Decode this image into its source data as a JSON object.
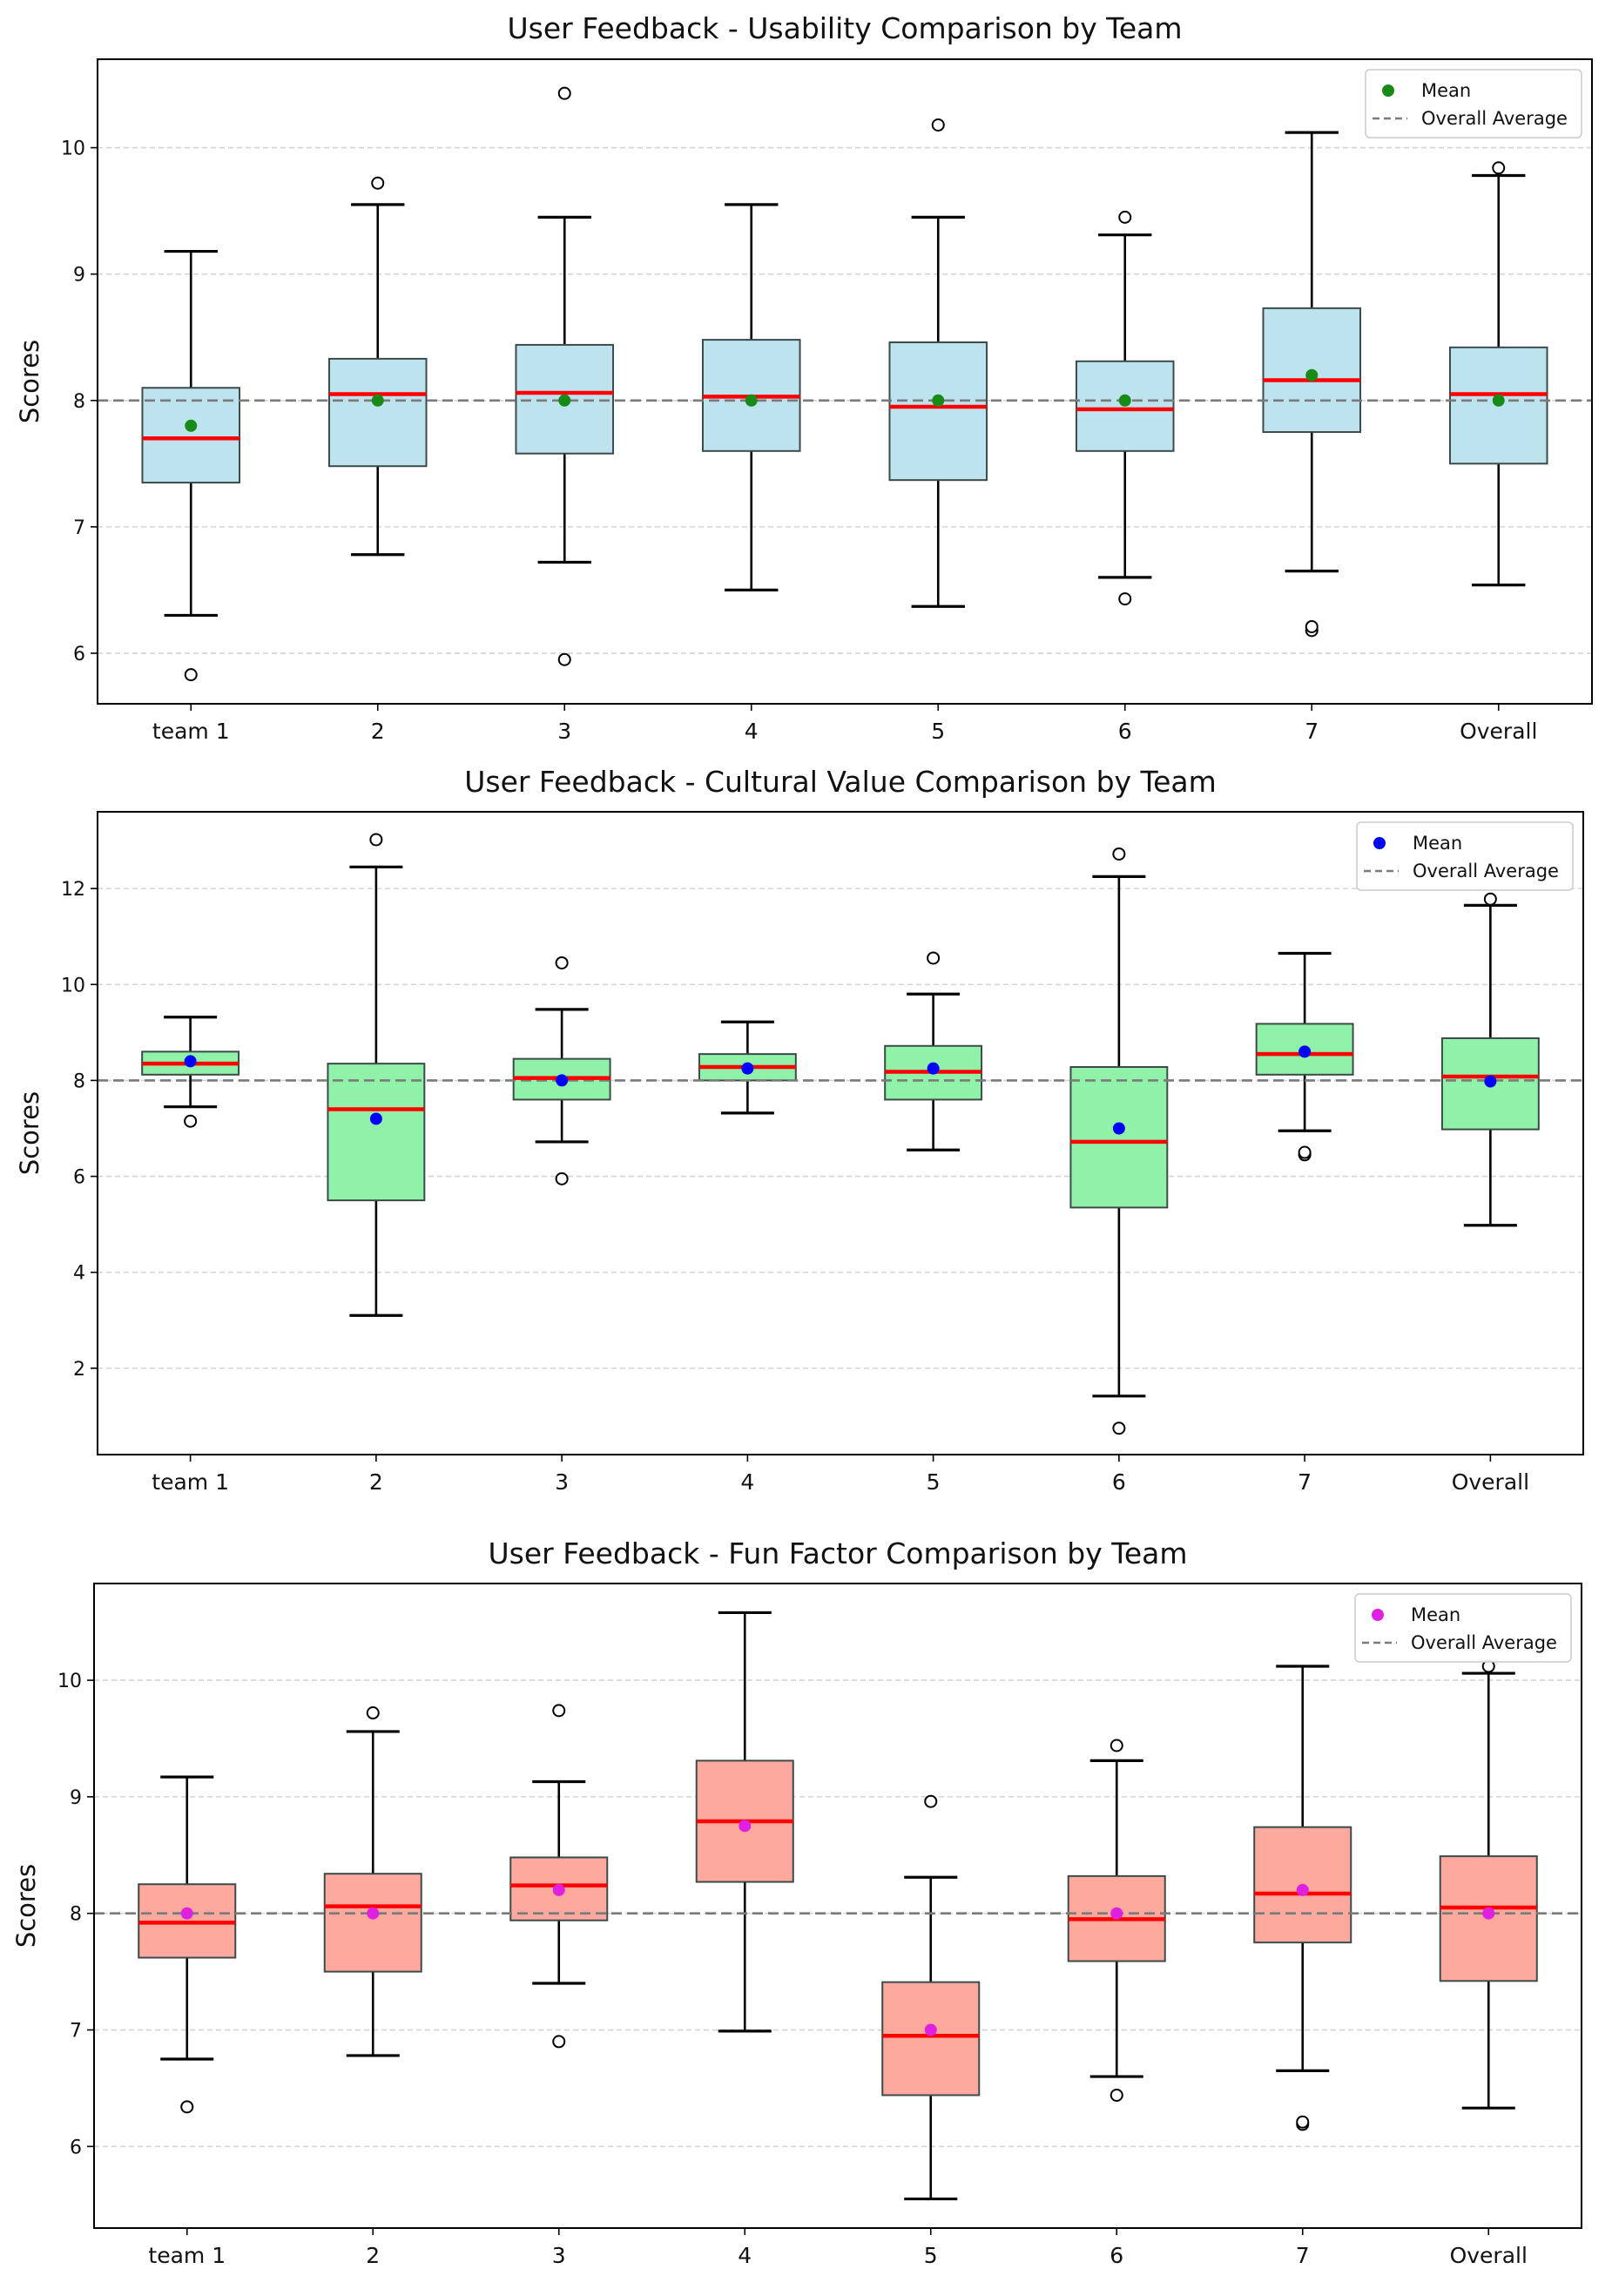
{
  "chart_data": [
    {
      "type": "box",
      "title": "User Feedback - Usability Comparison by Team",
      "ylabel": "Scores",
      "xlabel": "",
      "categories": [
        "team 1",
        "2",
        "3",
        "4",
        "5",
        "6",
        "7",
        "Overall"
      ],
      "ylim": [
        5.6,
        10.7
      ],
      "yticks": [
        6,
        7,
        8,
        9,
        10
      ],
      "grid": "y-dashed",
      "legend": {
        "position": "top-right",
        "mean_label": "Mean",
        "avg_label": "Overall Average"
      },
      "overall_average": 8.0,
      "colors": {
        "box": "#bde4ee",
        "median": "#ff0000",
        "mean": "#178a17",
        "average_line": "#7a7a7a"
      },
      "boxes": [
        {
          "whislo": 6.3,
          "q1": 7.35,
          "med": 7.7,
          "q3": 8.1,
          "whishi": 9.18,
          "mean": 7.8,
          "fliers": [
            5.83
          ]
        },
        {
          "whislo": 6.78,
          "q1": 7.48,
          "med": 8.05,
          "q3": 8.33,
          "whishi": 9.55,
          "mean": 8.0,
          "fliers": [
            9.72
          ]
        },
        {
          "whislo": 6.72,
          "q1": 7.58,
          "med": 8.06,
          "q3": 8.44,
          "whishi": 9.45,
          "mean": 8.0,
          "fliers": [
            5.95,
            10.43
          ]
        },
        {
          "whislo": 6.5,
          "q1": 7.6,
          "med": 8.03,
          "q3": 8.48,
          "whishi": 9.55,
          "mean": 8.0,
          "fliers": []
        },
        {
          "whislo": 6.37,
          "q1": 7.37,
          "med": 7.95,
          "q3": 8.46,
          "whishi": 9.45,
          "mean": 8.0,
          "fliers": [
            10.18
          ]
        },
        {
          "whislo": 6.6,
          "q1": 7.6,
          "med": 7.93,
          "q3": 8.31,
          "whishi": 9.31,
          "mean": 8.0,
          "fliers": [
            6.43,
            9.45
          ]
        },
        {
          "whislo": 6.65,
          "q1": 7.75,
          "med": 8.16,
          "q3": 8.73,
          "whishi": 10.12,
          "mean": 8.2,
          "fliers": [
            6.18,
            6.21
          ]
        },
        {
          "whislo": 6.54,
          "q1": 7.5,
          "med": 8.05,
          "q3": 8.42,
          "whishi": 9.78,
          "mean": 8.0,
          "fliers": [
            9.84
          ]
        }
      ]
    },
    {
      "type": "box",
      "title": "User Feedback - Cultural Value Comparison by Team",
      "ylabel": "Scores",
      "xlabel": "",
      "categories": [
        "team 1",
        "2",
        "3",
        "4",
        "5",
        "6",
        "7",
        "Overall"
      ],
      "ylim": [
        0.2,
        13.6
      ],
      "yticks": [
        2,
        4,
        6,
        8,
        10,
        12
      ],
      "grid": "y-dashed",
      "legend": {
        "position": "top-right",
        "mean_label": "Mean",
        "avg_label": "Overall Average"
      },
      "overall_average": 8.0,
      "colors": {
        "box": "#8ff2a8",
        "median": "#ff0000",
        "mean": "#0000ff",
        "average_line": "#7a7a7a"
      },
      "boxes": [
        {
          "whislo": 7.45,
          "q1": 8.12,
          "med": 8.35,
          "q3": 8.6,
          "whishi": 9.32,
          "mean": 8.4,
          "fliers": [
            7.15
          ]
        },
        {
          "whislo": 3.1,
          "q1": 5.5,
          "med": 7.4,
          "q3": 8.35,
          "whishi": 12.45,
          "mean": 7.2,
          "fliers": [
            13.02
          ]
        },
        {
          "whislo": 6.72,
          "q1": 7.6,
          "med": 8.05,
          "q3": 8.45,
          "whishi": 9.48,
          "mean": 8.0,
          "fliers": [
            5.95,
            10.45
          ]
        },
        {
          "whislo": 7.32,
          "q1": 8.0,
          "med": 8.28,
          "q3": 8.55,
          "whishi": 9.22,
          "mean": 8.25,
          "fliers": []
        },
        {
          "whislo": 6.55,
          "q1": 7.6,
          "med": 8.18,
          "q3": 8.72,
          "whishi": 9.8,
          "mean": 8.25,
          "fliers": [
            10.55
          ]
        },
        {
          "whislo": 1.42,
          "q1": 5.35,
          "med": 6.72,
          "q3": 8.28,
          "whishi": 12.25,
          "mean": 7.0,
          "fliers": [
            0.75,
            12.72
          ]
        },
        {
          "whislo": 6.95,
          "q1": 8.12,
          "med": 8.55,
          "q3": 9.18,
          "whishi": 10.65,
          "mean": 8.6,
          "fliers": [
            6.45,
            6.5
          ]
        },
        {
          "whislo": 4.98,
          "q1": 6.98,
          "med": 8.08,
          "q3": 8.88,
          "whishi": 11.65,
          "mean": 7.98,
          "fliers": [
            11.78
          ]
        }
      ]
    },
    {
      "type": "box",
      "title": "User Feedback - Fun Factor Comparison by Team",
      "ylabel": "Scores",
      "xlabel": "",
      "categories": [
        "team 1",
        "2",
        "3",
        "4",
        "5",
        "6",
        "7",
        "Overall"
      ],
      "ylim": [
        5.3,
        10.83
      ],
      "yticks": [
        6,
        7,
        8,
        9,
        10
      ],
      "grid": "y-dashed",
      "legend": {
        "position": "top-right",
        "mean_label": "Mean",
        "avg_label": "Overall Average"
      },
      "overall_average": 8.0,
      "colors": {
        "box": "#fda99e",
        "median": "#ff0000",
        "mean": "#e020e0",
        "average_line": "#7a7a7a"
      },
      "boxes": [
        {
          "whislo": 6.75,
          "q1": 7.62,
          "med": 7.92,
          "q3": 8.25,
          "whishi": 9.17,
          "mean": 8.0,
          "fliers": [
            6.34
          ]
        },
        {
          "whislo": 6.78,
          "q1": 7.5,
          "med": 8.06,
          "q3": 8.34,
          "whishi": 9.56,
          "mean": 8.0,
          "fliers": [
            9.72
          ]
        },
        {
          "whislo": 7.4,
          "q1": 7.94,
          "med": 8.24,
          "q3": 8.48,
          "whishi": 9.13,
          "mean": 8.2,
          "fliers": [
            6.9,
            9.74
          ]
        },
        {
          "whislo": 6.99,
          "q1": 8.27,
          "med": 8.79,
          "q3": 9.31,
          "whishi": 10.58,
          "mean": 8.75,
          "fliers": []
        },
        {
          "whislo": 5.55,
          "q1": 6.44,
          "med": 6.95,
          "q3": 7.41,
          "whishi": 8.31,
          "mean": 7.0,
          "fliers": [
            8.96
          ]
        },
        {
          "whislo": 6.6,
          "q1": 7.59,
          "med": 7.95,
          "q3": 8.32,
          "whishi": 9.31,
          "mean": 8.0,
          "fliers": [
            6.44,
            9.44
          ]
        },
        {
          "whislo": 6.65,
          "q1": 7.75,
          "med": 8.17,
          "q3": 8.74,
          "whishi": 10.12,
          "mean": 8.2,
          "fliers": [
            6.19,
            6.21
          ]
        },
        {
          "whislo": 6.33,
          "q1": 7.42,
          "med": 8.05,
          "q3": 8.49,
          "whishi": 10.06,
          "mean": 8.0,
          "fliers": [
            10.12
          ]
        }
      ]
    }
  ]
}
